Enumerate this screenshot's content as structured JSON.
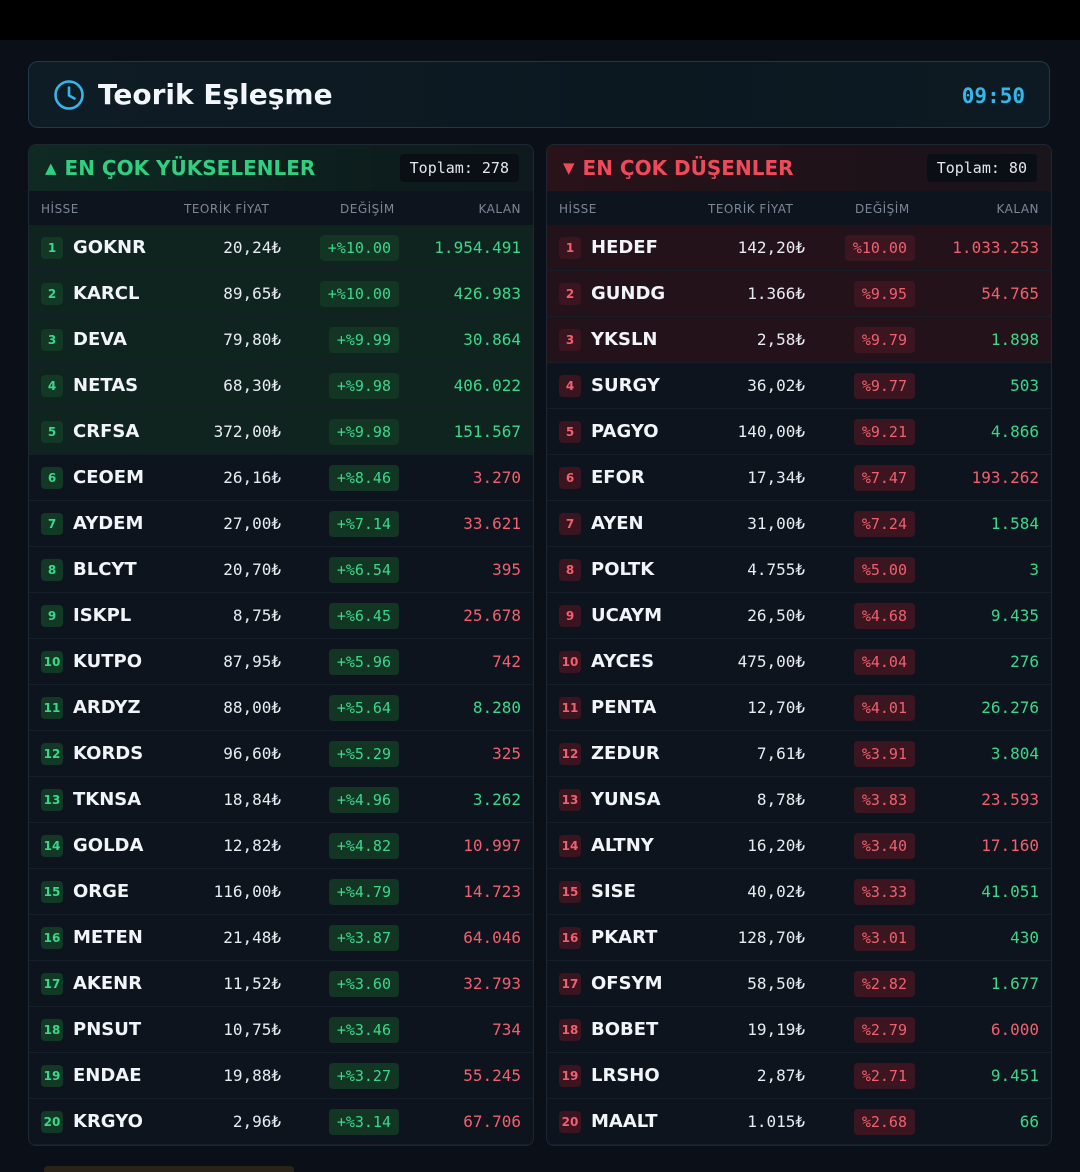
{
  "header": {
    "title": "Teorik Eşleşme",
    "time": "09:50",
    "clock_icon": "clock-icon"
  },
  "columns": {
    "hisse": "HİSSE",
    "fiyat": "TEORİK FİYAT",
    "degisim": "DEĞİŞİM",
    "kalan": "KALAN"
  },
  "gainers": {
    "arrow": "▲",
    "title": "EN ÇOK YÜKSELENLER",
    "total": "Toplam: 278",
    "rows": [
      {
        "rank": "1",
        "symbol": "GOKNR",
        "price": "20,24₺",
        "change": "+%10.00",
        "kalan": "1.954.491",
        "kalan_dir": "up",
        "hl": true
      },
      {
        "rank": "2",
        "symbol": "KARCL",
        "price": "89,65₺",
        "change": "+%10.00",
        "kalan": "426.983",
        "kalan_dir": "up",
        "hl": true
      },
      {
        "rank": "3",
        "symbol": "DEVA",
        "price": "79,80₺",
        "change": "+%9.99",
        "kalan": "30.864",
        "kalan_dir": "up",
        "hl": true
      },
      {
        "rank": "4",
        "symbol": "NETAS",
        "price": "68,30₺",
        "change": "+%9.98",
        "kalan": "406.022",
        "kalan_dir": "up",
        "hl": true
      },
      {
        "rank": "5",
        "symbol": "CRFSA",
        "price": "372,00₺",
        "change": "+%9.98",
        "kalan": "151.567",
        "kalan_dir": "up",
        "hl": true
      },
      {
        "rank": "6",
        "symbol": "CEOEM",
        "price": "26,16₺",
        "change": "+%8.46",
        "kalan": "3.270",
        "kalan_dir": "down",
        "hl": false
      },
      {
        "rank": "7",
        "symbol": "AYDEM",
        "price": "27,00₺",
        "change": "+%7.14",
        "kalan": "33.621",
        "kalan_dir": "down",
        "hl": false
      },
      {
        "rank": "8",
        "symbol": "BLCYT",
        "price": "20,70₺",
        "change": "+%6.54",
        "kalan": "395",
        "kalan_dir": "down",
        "hl": false
      },
      {
        "rank": "9",
        "symbol": "ISKPL",
        "price": "8,75₺",
        "change": "+%6.45",
        "kalan": "25.678",
        "kalan_dir": "down",
        "hl": false
      },
      {
        "rank": "10",
        "symbol": "KUTPO",
        "price": "87,95₺",
        "change": "+%5.96",
        "kalan": "742",
        "kalan_dir": "down",
        "hl": false
      },
      {
        "rank": "11",
        "symbol": "ARDYZ",
        "price": "88,00₺",
        "change": "+%5.64",
        "kalan": "8.280",
        "kalan_dir": "up",
        "hl": false
      },
      {
        "rank": "12",
        "symbol": "KORDS",
        "price": "96,60₺",
        "change": "+%5.29",
        "kalan": "325",
        "kalan_dir": "down",
        "hl": false
      },
      {
        "rank": "13",
        "symbol": "TKNSA",
        "price": "18,84₺",
        "change": "+%4.96",
        "kalan": "3.262",
        "kalan_dir": "up",
        "hl": false
      },
      {
        "rank": "14",
        "symbol": "GOLDA",
        "price": "12,82₺",
        "change": "+%4.82",
        "kalan": "10.997",
        "kalan_dir": "down",
        "hl": false
      },
      {
        "rank": "15",
        "symbol": "ORGE",
        "price": "116,00₺",
        "change": "+%4.79",
        "kalan": "14.723",
        "kalan_dir": "down",
        "hl": false
      },
      {
        "rank": "16",
        "symbol": "METEN",
        "price": "21,48₺",
        "change": "+%3.87",
        "kalan": "64.046",
        "kalan_dir": "down",
        "hl": false
      },
      {
        "rank": "17",
        "symbol": "AKENR",
        "price": "11,52₺",
        "change": "+%3.60",
        "kalan": "32.793",
        "kalan_dir": "down",
        "hl": false
      },
      {
        "rank": "18",
        "symbol": "PNSUT",
        "price": "10,75₺",
        "change": "+%3.46",
        "kalan": "734",
        "kalan_dir": "down",
        "hl": false
      },
      {
        "rank": "19",
        "symbol": "ENDAE",
        "price": "19,88₺",
        "change": "+%3.27",
        "kalan": "55.245",
        "kalan_dir": "down",
        "hl": false
      },
      {
        "rank": "20",
        "symbol": "KRGYO",
        "price": "2,96₺",
        "change": "+%3.14",
        "kalan": "67.706",
        "kalan_dir": "down",
        "hl": false
      }
    ]
  },
  "losers": {
    "arrow": "▼",
    "title": "EN ÇOK DÜŞENLER",
    "total": "Toplam: 80",
    "rows": [
      {
        "rank": "1",
        "symbol": "HEDEF",
        "price": "142,20₺",
        "change": "%10.00",
        "kalan": "1.033.253",
        "kalan_dir": "down",
        "hl": true
      },
      {
        "rank": "2",
        "symbol": "GUNDG",
        "price": "1.366₺",
        "change": "%9.95",
        "kalan": "54.765",
        "kalan_dir": "down",
        "hl": true
      },
      {
        "rank": "3",
        "symbol": "YKSLN",
        "price": "2,58₺",
        "change": "%9.79",
        "kalan": "1.898",
        "kalan_dir": "up",
        "hl": true
      },
      {
        "rank": "4",
        "symbol": "SURGY",
        "price": "36,02₺",
        "change": "%9.77",
        "kalan": "503",
        "kalan_dir": "up",
        "hl": false
      },
      {
        "rank": "5",
        "symbol": "PAGYO",
        "price": "140,00₺",
        "change": "%9.21",
        "kalan": "4.866",
        "kalan_dir": "up",
        "hl": false
      },
      {
        "rank": "6",
        "symbol": "EFOR",
        "price": "17,34₺",
        "change": "%7.47",
        "kalan": "193.262",
        "kalan_dir": "down",
        "hl": false
      },
      {
        "rank": "7",
        "symbol": "AYEN",
        "price": "31,00₺",
        "change": "%7.24",
        "kalan": "1.584",
        "kalan_dir": "up",
        "hl": false
      },
      {
        "rank": "8",
        "symbol": "POLTK",
        "price": "4.755₺",
        "change": "%5.00",
        "kalan": "3",
        "kalan_dir": "up",
        "hl": false
      },
      {
        "rank": "9",
        "symbol": "UCAYM",
        "price": "26,50₺",
        "change": "%4.68",
        "kalan": "9.435",
        "kalan_dir": "up",
        "hl": false
      },
      {
        "rank": "10",
        "symbol": "AYCES",
        "price": "475,00₺",
        "change": "%4.04",
        "kalan": "276",
        "kalan_dir": "up",
        "hl": false
      },
      {
        "rank": "11",
        "symbol": "PENTA",
        "price": "12,70₺",
        "change": "%4.01",
        "kalan": "26.276",
        "kalan_dir": "up",
        "hl": false
      },
      {
        "rank": "12",
        "symbol": "ZEDUR",
        "price": "7,61₺",
        "change": "%3.91",
        "kalan": "3.804",
        "kalan_dir": "up",
        "hl": false
      },
      {
        "rank": "13",
        "symbol": "YUNSA",
        "price": "8,78₺",
        "change": "%3.83",
        "kalan": "23.593",
        "kalan_dir": "down",
        "hl": false
      },
      {
        "rank": "14",
        "symbol": "ALTNY",
        "price": "16,20₺",
        "change": "%3.40",
        "kalan": "17.160",
        "kalan_dir": "down",
        "hl": false
      },
      {
        "rank": "15",
        "symbol": "SISE",
        "price": "40,02₺",
        "change": "%3.33",
        "kalan": "41.051",
        "kalan_dir": "up",
        "hl": false
      },
      {
        "rank": "16",
        "symbol": "PKART",
        "price": "128,70₺",
        "change": "%3.01",
        "kalan": "430",
        "kalan_dir": "up",
        "hl": false
      },
      {
        "rank": "17",
        "symbol": "OFSYM",
        "price": "58,50₺",
        "change": "%2.82",
        "kalan": "1.677",
        "kalan_dir": "up",
        "hl": false
      },
      {
        "rank": "18",
        "symbol": "BOBET",
        "price": "19,19₺",
        "change": "%2.79",
        "kalan": "6.000",
        "kalan_dir": "down",
        "hl": false
      },
      {
        "rank": "19",
        "symbol": "LRSHO",
        "price": "2,87₺",
        "change": "%2.71",
        "kalan": "9.451",
        "kalan_dir": "up",
        "hl": false
      },
      {
        "rank": "20",
        "symbol": "MAALT",
        "price": "1.015₺",
        "change": "%2.68",
        "kalan": "66",
        "kalan_dir": "up",
        "hl": false
      }
    ]
  },
  "colors": {
    "up": "#3bd88a",
    "down": "#f0606e",
    "accent": "#35b6e8"
  }
}
